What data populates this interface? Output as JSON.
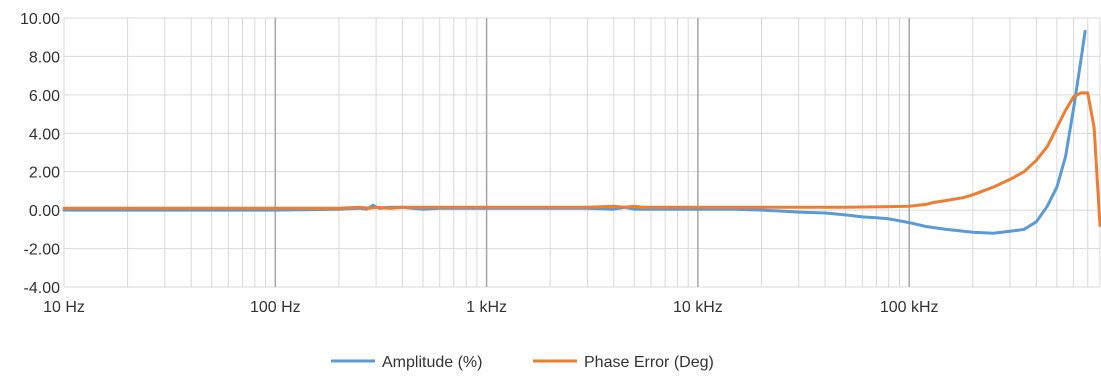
{
  "chart_data": {
    "type": "line",
    "x_scale": "log",
    "xlim": [
      10,
      800000
    ],
    "ylim": [
      -4,
      10
    ],
    "grid": true,
    "legend_placement": "bottom-center",
    "x_ticks": [
      {
        "value": 10,
        "label": "10 Hz"
      },
      {
        "value": 100,
        "label": "100 Hz"
      },
      {
        "value": 1000,
        "label": "1 kHz"
      },
      {
        "value": 10000,
        "label": "10 kHz"
      },
      {
        "value": 100000,
        "label": "100 kHz"
      }
    ],
    "y_ticks": [
      {
        "value": 10,
        "label": "10.00"
      },
      {
        "value": 8,
        "label": "8.00"
      },
      {
        "value": 6,
        "label": "6.00"
      },
      {
        "value": 4,
        "label": "4.00"
      },
      {
        "value": 2,
        "label": "2.00"
      },
      {
        "value": 0,
        "label": "0.00"
      },
      {
        "value": -2,
        "label": "-2.00"
      },
      {
        "value": -4,
        "label": "-4.00"
      }
    ],
    "series": [
      {
        "name": "Amplitude (%)",
        "color": "#5b9bd5",
        "x": [
          10,
          100,
          200,
          250,
          270,
          290,
          310,
          350,
          400,
          500,
          600,
          1000,
          3000,
          4000,
          4500,
          5000,
          6000,
          10000,
          15000,
          20000,
          25000,
          30000,
          40000,
          50000,
          60000,
          70000,
          80000,
          100000,
          120000,
          150000,
          200000,
          250000,
          300000,
          350000,
          400000,
          450000,
          500000,
          550000,
          600000,
          650000,
          680000
        ],
        "y": [
          0.0,
          0.0,
          0.05,
          0.1,
          0.05,
          0.25,
          0.1,
          0.15,
          0.15,
          0.05,
          0.1,
          0.1,
          0.1,
          0.05,
          0.15,
          0.05,
          0.05,
          0.05,
          0.05,
          0.0,
          -0.05,
          -0.1,
          -0.15,
          -0.25,
          -0.35,
          -0.4,
          -0.45,
          -0.65,
          -0.85,
          -1.0,
          -1.15,
          -1.2,
          -1.1,
          -1.0,
          -0.6,
          0.2,
          1.2,
          2.8,
          5.3,
          7.8,
          9.3
        ]
      },
      {
        "name": "Phase Error (Deg)",
        "color": "#ed7d31",
        "x": [
          10,
          100,
          200,
          250,
          280,
          300,
          350,
          400,
          1000,
          3000,
          4000,
          4500,
          5000,
          5500,
          6000,
          10000,
          20000,
          50000,
          100000,
          120000,
          130000,
          150000,
          180000,
          200000,
          250000,
          300000,
          350000,
          400000,
          450000,
          500000,
          550000,
          600000,
          650000,
          700000,
          750000,
          800000
        ],
        "y": [
          0.1,
          0.1,
          0.1,
          0.15,
          0.1,
          0.15,
          0.1,
          0.15,
          0.15,
          0.15,
          0.2,
          0.15,
          0.2,
          0.15,
          0.15,
          0.15,
          0.15,
          0.15,
          0.2,
          0.3,
          0.4,
          0.5,
          0.65,
          0.8,
          1.2,
          1.6,
          2.0,
          2.6,
          3.3,
          4.3,
          5.2,
          5.9,
          6.1,
          6.1,
          4.3,
          -0.8
        ]
      }
    ]
  }
}
